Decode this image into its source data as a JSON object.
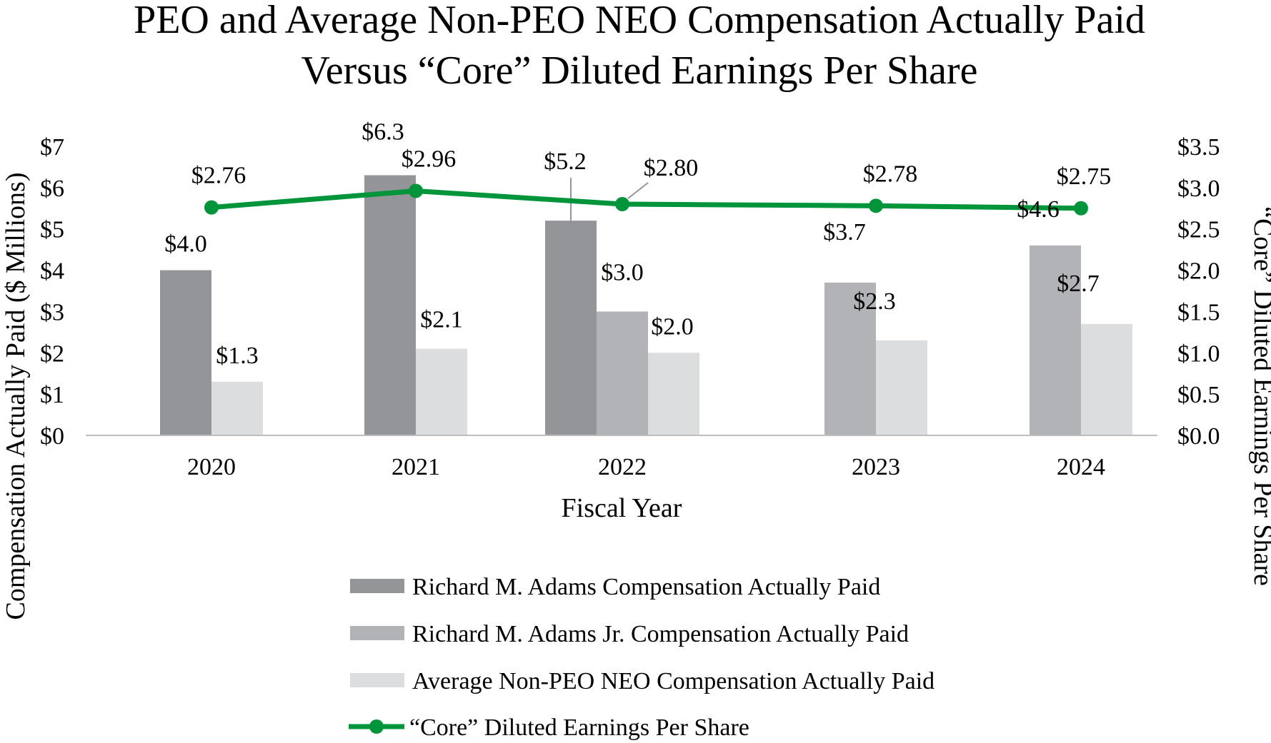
{
  "chart_data": {
    "type": "bar",
    "title": [
      "PEO and Average Non-PEO NEO Compensation Actually Paid",
      "Versus “Core” Diluted Earnings Per Share"
    ],
    "xlabel": "Fiscal Year",
    "ylabel": "Compensation Actually Paid ($ Millions)",
    "y2label": "“Core” Diluted Earnings Per Share",
    "ylim": [
      0,
      7
    ],
    "y2lim": [
      0,
      3.5
    ],
    "yticks": [
      0,
      1,
      2,
      3,
      4,
      5,
      6,
      7
    ],
    "yticklabels": [
      "$0",
      "$1",
      "$2",
      "$3",
      "$4",
      "$5",
      "$6",
      "$7"
    ],
    "y2ticks": [
      0,
      0.5,
      1,
      1.5,
      2,
      2.5,
      3,
      3.5
    ],
    "y2ticklabels": [
      "$0.0",
      "$0.5",
      "$1.0",
      "$1.5",
      "$2.0",
      "$2.5",
      "$3.0",
      "$3.5"
    ],
    "categories": [
      "2020",
      "2021",
      "2022",
      "2023",
      "2024"
    ],
    "series": [
      {
        "name": "Richard M. Adams Compensation Actually Paid",
        "color": "#939598",
        "values": [
          4.0,
          6.3,
          5.2,
          null,
          null
        ],
        "labels": [
          "$4.0",
          "$6.3",
          "$5.2",
          "",
          ""
        ]
      },
      {
        "name": "Richard M. Adams Jr. Compensation Actually Paid",
        "color": "#b1b3b6",
        "values": [
          null,
          null,
          3.0,
          3.7,
          4.6
        ],
        "labels": [
          "",
          "",
          "$3.0",
          "$3.7",
          "$4.6"
        ]
      },
      {
        "name": "Average Non-PEO NEO Compensation Actually Paid",
        "color": "#dcddde",
        "values": [
          1.3,
          2.1,
          2.0,
          2.3,
          2.7
        ],
        "labels": [
          "$1.3",
          "$2.1",
          "$2.0",
          "$2.3",
          "$2.7"
        ]
      }
    ],
    "line_series": {
      "name": "“Core” Diluted Earnings Per Share",
      "axis": "right",
      "color": "#00953b",
      "values": [
        2.76,
        2.96,
        2.8,
        2.78,
        2.75
      ],
      "labels": [
        "$2.76",
        "$2.96",
        "$2.80",
        "$2.78",
        "$2.75"
      ]
    },
    "legend_position": "bottom"
  }
}
